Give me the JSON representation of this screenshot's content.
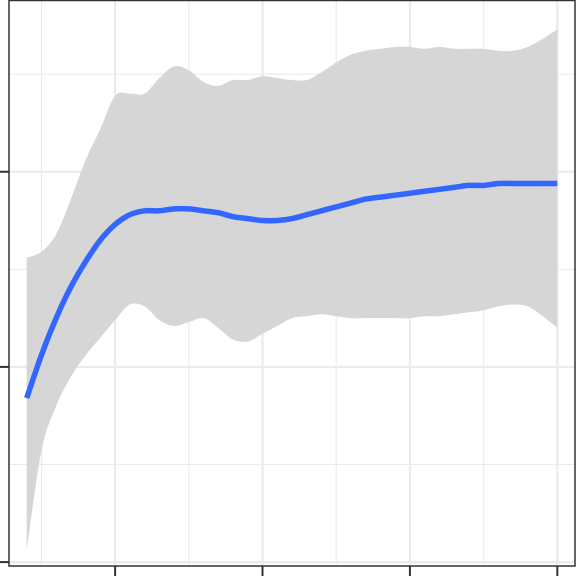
{
  "chart_data": {
    "type": "line",
    "title": "",
    "xlabel": "",
    "ylabel": "",
    "xlim": [
      -0.6,
      18.6
    ],
    "ylim": [
      -0.02,
      2.88
    ],
    "x_ticks_major": [
      3,
      8,
      13,
      18
    ],
    "x_ticks_minor": [
      0.5,
      5.5,
      10.5,
      15.5
    ],
    "y_ticks_major": [
      0,
      1,
      2
    ],
    "y_ticks_minor": [
      0.5,
      1.5,
      2.5
    ],
    "grid": true,
    "smooth": {
      "x": [
        0,
        0.5,
        1,
        1.5,
        2,
        2.5,
        3,
        3.5,
        4,
        4.5,
        5,
        5.5,
        6,
        6.5,
        7,
        7.5,
        8,
        8.5,
        9,
        9.5,
        10,
        10.5,
        11,
        11.5,
        12,
        12.5,
        13,
        13.5,
        14,
        14.5,
        15,
        15.5,
        16,
        16.5,
        17,
        17.5,
        18
      ],
      "fit": [
        0.84,
        1.06,
        1.25,
        1.41,
        1.54,
        1.65,
        1.73,
        1.78,
        1.8,
        1.8,
        1.81,
        1.81,
        1.8,
        1.79,
        1.77,
        1.76,
        1.75,
        1.75,
        1.76,
        1.78,
        1.8,
        1.82,
        1.84,
        1.86,
        1.87,
        1.88,
        1.89,
        1.9,
        1.91,
        1.92,
        1.93,
        1.93,
        1.94,
        1.94,
        1.94,
        1.94,
        1.94
      ],
      "upper": [
        1.56,
        1.59,
        1.68,
        1.86,
        2.06,
        2.22,
        2.39,
        2.4,
        2.4,
        2.48,
        2.54,
        2.52,
        2.46,
        2.44,
        2.47,
        2.47,
        2.49,
        2.48,
        2.47,
        2.47,
        2.51,
        2.56,
        2.6,
        2.62,
        2.63,
        2.64,
        2.64,
        2.63,
        2.64,
        2.63,
        2.63,
        2.63,
        2.62,
        2.62,
        2.64,
        2.68,
        2.73
      ],
      "lower": [
        0.06,
        0.57,
        0.8,
        0.95,
        1.06,
        1.15,
        1.24,
        1.32,
        1.31,
        1.24,
        1.21,
        1.23,
        1.25,
        1.2,
        1.14,
        1.13,
        1.17,
        1.21,
        1.25,
        1.26,
        1.27,
        1.26,
        1.25,
        1.25,
        1.25,
        1.25,
        1.25,
        1.26,
        1.26,
        1.27,
        1.28,
        1.29,
        1.31,
        1.32,
        1.31,
        1.26,
        1.2
      ]
    },
    "colors": {
      "line": "#3366ff",
      "ribbon": "#d6d6d6",
      "grid": "#ebebeb",
      "frame": "#333333",
      "background": "#ffffff"
    }
  }
}
